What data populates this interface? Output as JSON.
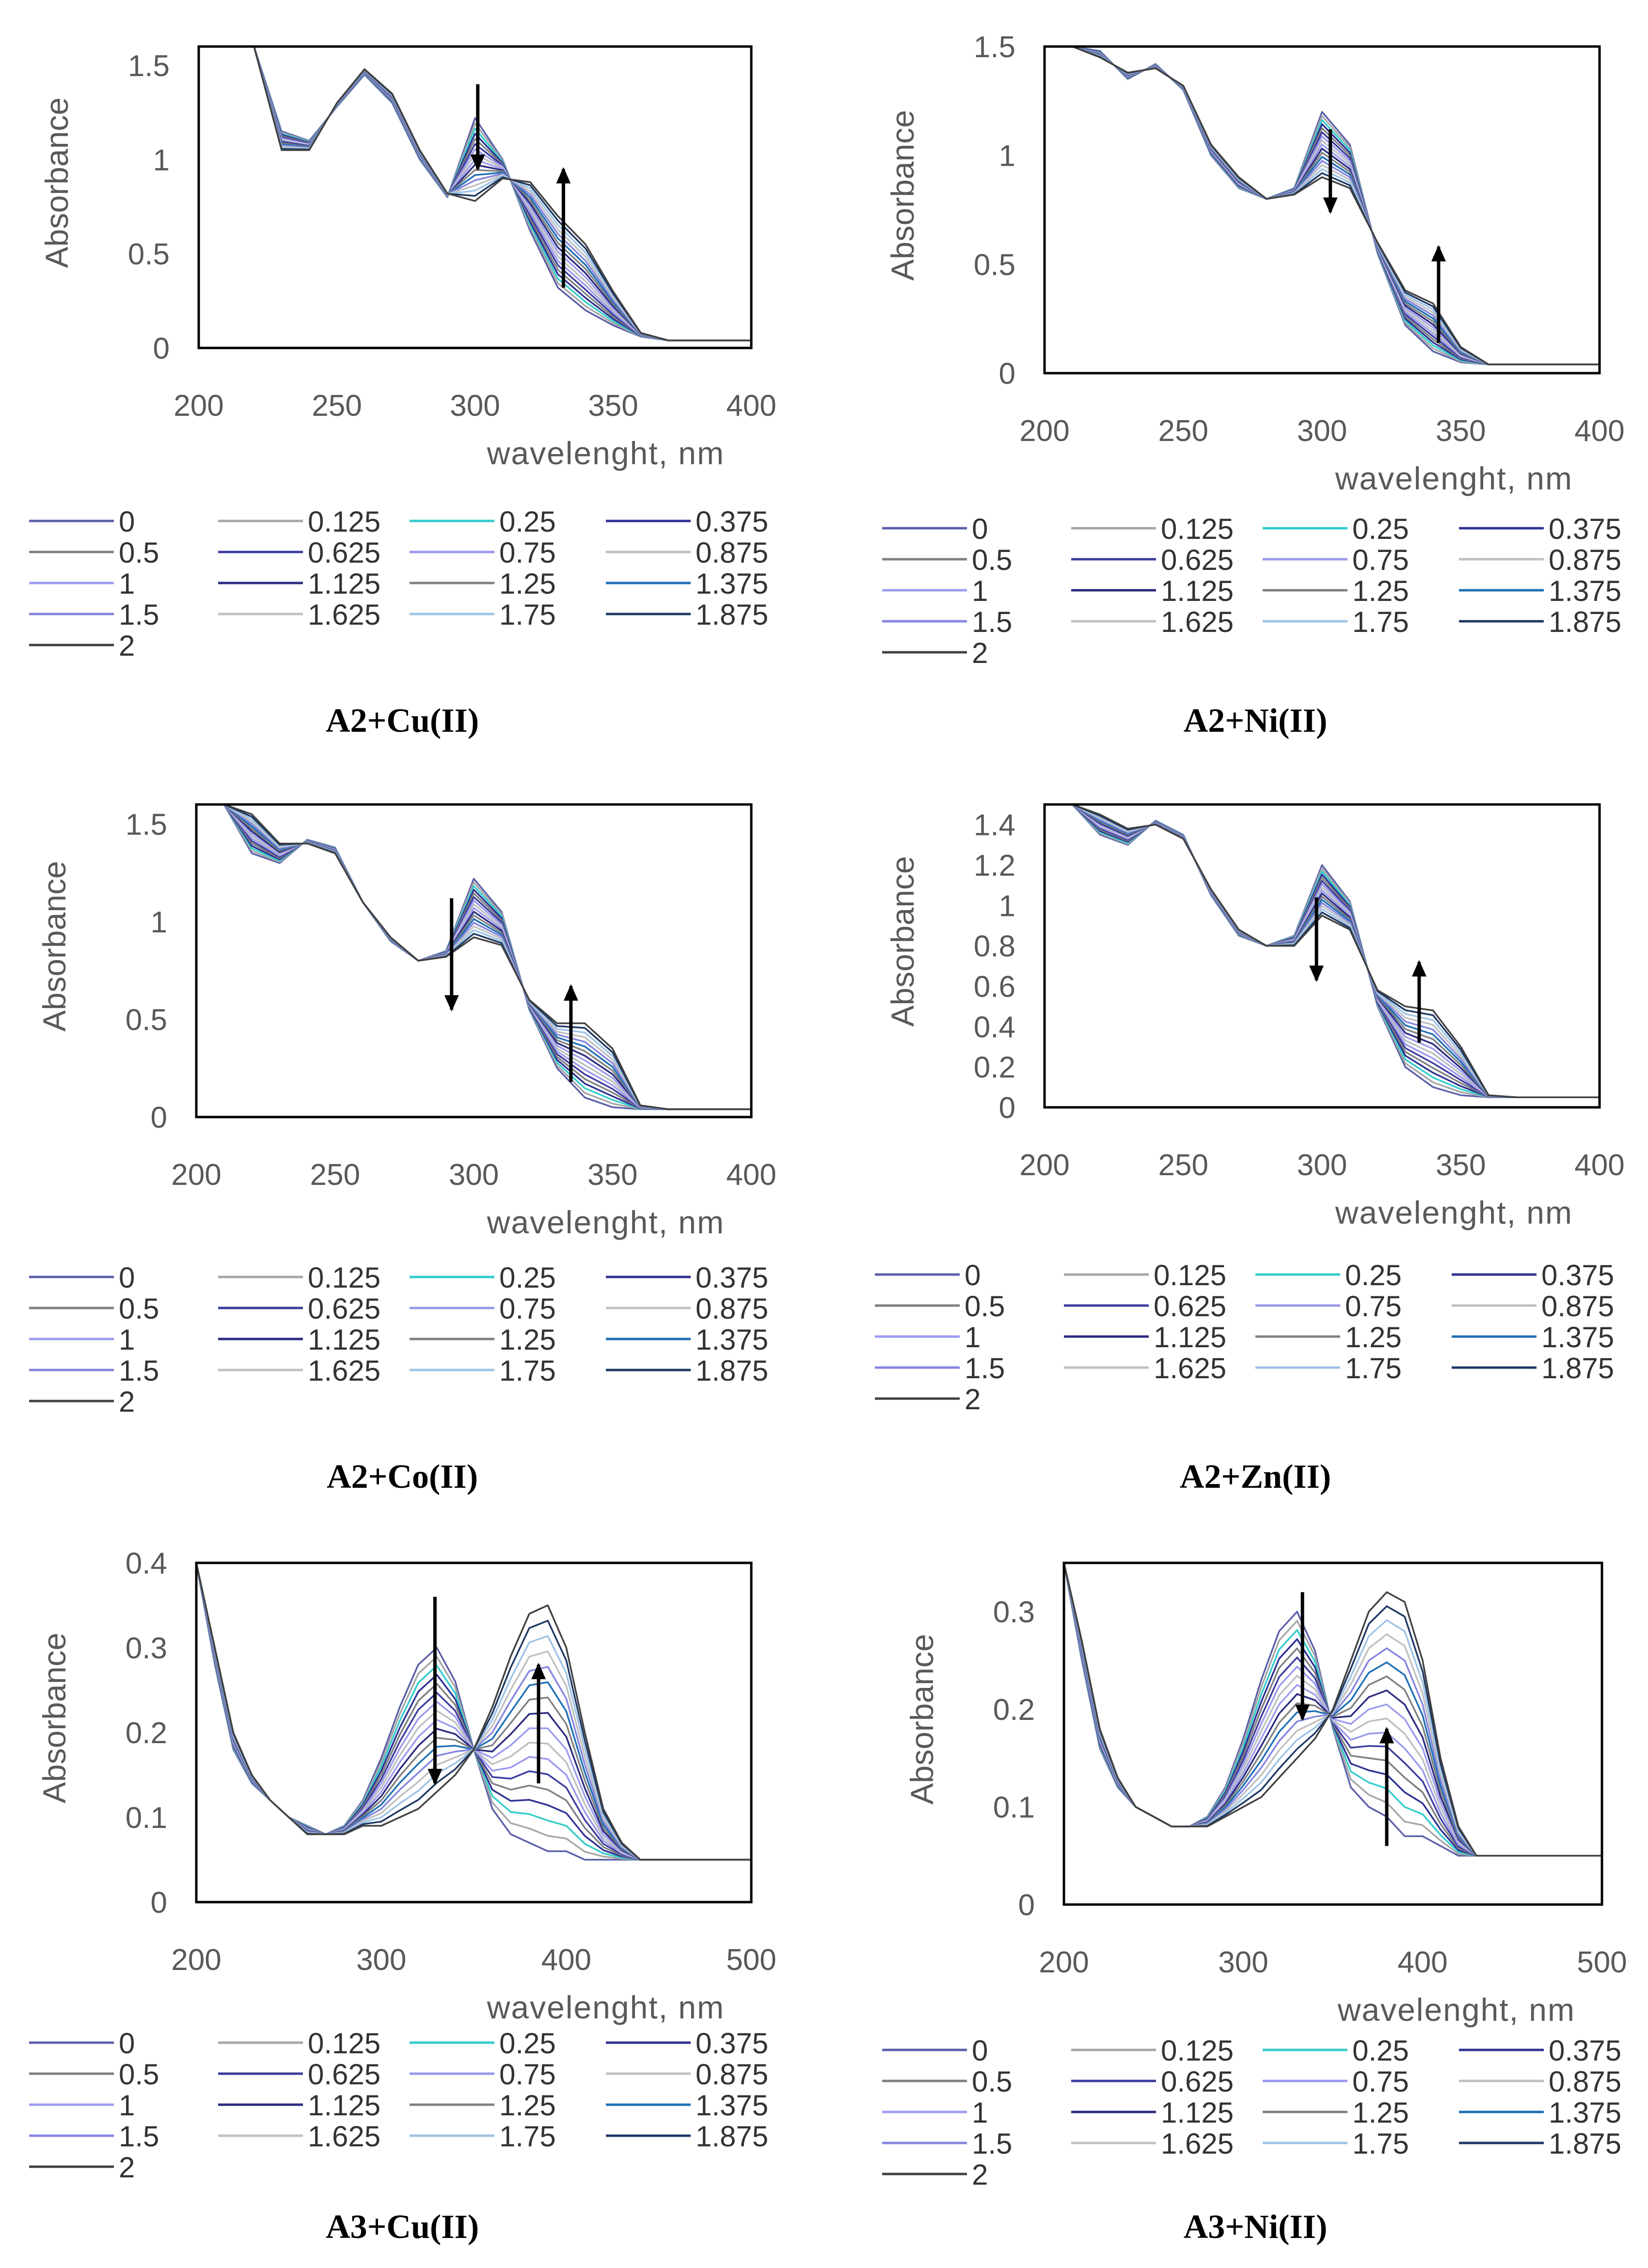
{
  "legend_entries": [
    "0",
    "0.125",
    "0.25",
    "0.375",
    "0.5",
    "0.625",
    "0.75",
    "0.875",
    "1",
    "1.125",
    "1.25",
    "1.375",
    "1.5",
    "1.625",
    "1.75",
    "1.875",
    "2"
  ],
  "series_colors": [
    "#5b5fa8",
    "#a6a6a6",
    "#33cccc",
    "#2e3192",
    "#7f7f7f",
    "#3c3c9e",
    "#9999ee",
    "#bfbfbf",
    "#9c9cf0",
    "#2b2b80",
    "#808080",
    "#1f6fb4",
    "#8585e0",
    "#c0c0c0",
    "#9dc3e6",
    "#1f3864",
    "#404040"
  ],
  "charts": [
    {
      "caption": "A2+Cu(II)",
      "ylabel": "Absorbance",
      "xlabel": "wavelenght, nm",
      "xticks": [
        "200",
        "250",
        "300",
        "350",
        "400"
      ],
      "yticks": [
        "0",
        "0.5",
        "1",
        "1.5"
      ],
      "xlim": [
        200,
        400
      ],
      "ylim": [
        0,
        1.6
      ],
      "arrows": [
        {
          "x": 301,
          "from": 1.4,
          "to": 0.95
        },
        {
          "x": 332,
          "from": 0.32,
          "to": 0.95
        }
      ]
    },
    {
      "caption": "A2+Ni(II)",
      "ylabel": "Absorbance",
      "xlabel": "wavelenght, nm",
      "xticks": [
        "200",
        "250",
        "300",
        "350",
        "400"
      ],
      "yticks": [
        "0",
        "0.5",
        "1",
        "1.5"
      ],
      "xlim": [
        200,
        400
      ],
      "ylim": [
        0,
        1.5
      ],
      "arrows": [
        {
          "x": 303,
          "from": 1.12,
          "to": 0.74
        },
        {
          "x": 342,
          "from": 0.14,
          "to": 0.58
        }
      ]
    },
    {
      "caption": "A2+Co(II)",
      "ylabel": "Absorbance",
      "xlabel": "wavelenght, nm",
      "xticks": [
        "200",
        "250",
        "300",
        "350",
        "400"
      ],
      "yticks": [
        "0",
        "0.5",
        "1",
        "1.5"
      ],
      "xlim": [
        200,
        400
      ],
      "ylim": [
        0,
        1.6
      ],
      "arrows": [
        {
          "x": 292,
          "from": 1.12,
          "to": 0.55
        },
        {
          "x": 335,
          "from": 0.18,
          "to": 0.67
        }
      ]
    },
    {
      "caption": "A2+Zn(II)",
      "ylabel": "Absorbance",
      "xlabel": "wavelenght, nm",
      "xticks": [
        "200",
        "250",
        "300",
        "350",
        "400"
      ],
      "yticks": [
        "0",
        "0.2",
        "0.4",
        "0.6",
        "0.8",
        "1",
        "1.2",
        "1.4"
      ],
      "xlim": [
        200,
        400
      ],
      "ylim": [
        0,
        1.5
      ],
      "arrows": [
        {
          "x": 298,
          "from": 1.04,
          "to": 0.63
        },
        {
          "x": 335,
          "from": 0.32,
          "to": 0.72
        }
      ]
    },
    {
      "caption": "A3+Cu(II)",
      "ylabel": "Absorbance",
      "xlabel": "wavelenght, nm",
      "xticks": [
        "200",
        "300",
        "400",
        "500"
      ],
      "yticks": [
        "0",
        "0.1",
        "0.2",
        "0.3",
        "0.4"
      ],
      "xlim": [
        200,
        500
      ],
      "ylim": [
        0,
        0.4
      ],
      "arrows": [
        {
          "x": 329,
          "from": 0.36,
          "to": 0.14
        },
        {
          "x": 385,
          "from": 0.14,
          "to": 0.28
        }
      ]
    },
    {
      "caption": "A3+Ni(II)",
      "ylabel": "Absorbance",
      "xlabel": "wavelenght, nm",
      "xticks": [
        "200",
        "300",
        "400",
        "500"
      ],
      "yticks": [
        "0",
        "0.1",
        "0.2",
        "0.3"
      ],
      "xlim": [
        200,
        500
      ],
      "ylim": [
        0,
        0.35
      ],
      "arrows": [
        {
          "x": 333,
          "from": 0.32,
          "to": 0.19
        },
        {
          "x": 380,
          "from": 0.06,
          "to": 0.18
        }
      ]
    }
  ],
  "chart_data": [
    {
      "type": "line",
      "title": "A2+Cu(II)",
      "xlabel": "wavelenght, nm",
      "ylabel": "Absorbance",
      "xlim": [
        200,
        400
      ],
      "ylim": [
        0,
        1.6
      ],
      "x": [
        200,
        210,
        220,
        230,
        240,
        250,
        260,
        270,
        280,
        290,
        300,
        310,
        320,
        330,
        340,
        350,
        360,
        370,
        380,
        390,
        400
      ],
      "start": [
        1.6,
        1.6,
        1.6,
        1.15,
        1.1,
        1.28,
        1.45,
        1.3,
        1.0,
        0.8,
        1.22,
        1.0,
        0.62,
        0.32,
        0.2,
        0.12,
        0.06,
        0.04,
        0.04,
        0.04,
        0.04
      ],
      "end": [
        1.6,
        1.6,
        1.6,
        1.05,
        1.05,
        1.3,
        1.48,
        1.35,
        1.05,
        0.82,
        0.78,
        0.9,
        0.88,
        0.7,
        0.55,
        0.3,
        0.08,
        0.04,
        0.04,
        0.04,
        0.04
      ]
    },
    {
      "type": "line",
      "title": "A2+Ni(II)",
      "xlabel": "wavelenght, nm",
      "ylabel": "Absorbance",
      "xlim": [
        200,
        400
      ],
      "ylim": [
        0,
        1.5
      ],
      "x": [
        200,
        210,
        220,
        230,
        240,
        250,
        260,
        270,
        280,
        290,
        300,
        310,
        320,
        330,
        340,
        350,
        360,
        370,
        380,
        390,
        400
      ],
      "start": [
        1.5,
        1.5,
        1.48,
        1.35,
        1.42,
        1.3,
        1.0,
        0.85,
        0.8,
        0.85,
        1.2,
        1.05,
        0.55,
        0.22,
        0.1,
        0.05,
        0.04,
        0.04,
        0.04,
        0.04,
        0.04
      ],
      "end": [
        1.5,
        1.5,
        1.45,
        1.38,
        1.4,
        1.32,
        1.05,
        0.9,
        0.8,
        0.82,
        0.9,
        0.85,
        0.6,
        0.38,
        0.32,
        0.12,
        0.04,
        0.04,
        0.04,
        0.04,
        0.04
      ]
    },
    {
      "type": "line",
      "title": "A2+Co(II)",
      "xlabel": "wavelenght, nm",
      "ylabel": "Absorbance",
      "xlim": [
        200,
        400
      ],
      "ylim": [
        0,
        1.6
      ],
      "x": [
        200,
        210,
        220,
        230,
        240,
        250,
        260,
        270,
        280,
        290,
        300,
        310,
        320,
        330,
        340,
        350,
        360,
        370,
        380,
        390,
        400
      ],
      "start": [
        1.6,
        1.6,
        1.35,
        1.3,
        1.42,
        1.38,
        1.1,
        0.9,
        0.8,
        0.85,
        1.22,
        1.05,
        0.55,
        0.25,
        0.1,
        0.05,
        0.04,
        0.04,
        0.04,
        0.04,
        0.04
      ],
      "end": [
        1.6,
        1.6,
        1.55,
        1.4,
        1.4,
        1.35,
        1.1,
        0.92,
        0.8,
        0.82,
        0.92,
        0.88,
        0.6,
        0.48,
        0.48,
        0.35,
        0.06,
        0.04,
        0.04,
        0.04,
        0.04
      ]
    },
    {
      "type": "line",
      "title": "A2+Zn(II)",
      "xlabel": "wavelenght, nm",
      "ylabel": "Absorbance",
      "xlim": [
        200,
        400
      ],
      "ylim": [
        0,
        1.5
      ],
      "x": [
        200,
        210,
        220,
        230,
        240,
        250,
        260,
        270,
        280,
        290,
        300,
        310,
        320,
        330,
        340,
        350,
        360,
        370,
        380,
        390,
        400
      ],
      "start": [
        1.5,
        1.5,
        1.35,
        1.3,
        1.42,
        1.35,
        1.05,
        0.85,
        0.8,
        0.85,
        1.2,
        1.02,
        0.5,
        0.2,
        0.1,
        0.06,
        0.05,
        0.05,
        0.05,
        0.05,
        0.05
      ],
      "end": [
        1.5,
        1.5,
        1.45,
        1.38,
        1.4,
        1.33,
        1.08,
        0.88,
        0.8,
        0.8,
        0.95,
        0.88,
        0.58,
        0.5,
        0.48,
        0.3,
        0.06,
        0.05,
        0.05,
        0.05,
        0.05
      ]
    },
    {
      "type": "line",
      "title": "A3+Cu(II)",
      "xlabel": "wavelenght, nm",
      "ylabel": "Absorbance",
      "xlim": [
        200,
        500
      ],
      "ylim": [
        0,
        0.4
      ],
      "x": [
        200,
        210,
        220,
        230,
        240,
        250,
        260,
        270,
        280,
        290,
        300,
        310,
        320,
        330,
        340,
        350,
        360,
        370,
        380,
        390,
        400,
        410,
        420,
        430,
        440,
        450,
        460,
        470,
        480,
        490,
        500
      ],
      "start": [
        0.4,
        0.28,
        0.18,
        0.14,
        0.12,
        0.1,
        0.09,
        0.08,
        0.09,
        0.12,
        0.17,
        0.23,
        0.28,
        0.3,
        0.26,
        0.18,
        0.11,
        0.08,
        0.07,
        0.06,
        0.06,
        0.05,
        0.05,
        0.05,
        0.05,
        0.05,
        0.05,
        0.05,
        0.05,
        0.05,
        0.05
      ],
      "end": [
        0.4,
        0.3,
        0.2,
        0.15,
        0.12,
        0.1,
        0.08,
        0.08,
        0.08,
        0.09,
        0.09,
        0.1,
        0.11,
        0.13,
        0.15,
        0.18,
        0.23,
        0.29,
        0.34,
        0.35,
        0.3,
        0.2,
        0.11,
        0.07,
        0.05,
        0.05,
        0.05,
        0.05,
        0.05,
        0.05,
        0.05
      ]
    },
    {
      "type": "line",
      "title": "A3+Ni(II)",
      "xlabel": "wavelenght, nm",
      "ylabel": "Absorbance",
      "xlim": [
        200,
        500
      ],
      "ylim": [
        0,
        0.35
      ],
      "x": [
        200,
        210,
        220,
        230,
        240,
        250,
        260,
        270,
        280,
        290,
        300,
        310,
        320,
        330,
        340,
        350,
        360,
        370,
        380,
        390,
        400,
        410,
        420,
        430,
        440,
        450,
        460,
        470,
        480,
        490,
        500
      ],
      "start": [
        0.35,
        0.25,
        0.16,
        0.12,
        0.1,
        0.09,
        0.08,
        0.08,
        0.09,
        0.12,
        0.17,
        0.23,
        0.28,
        0.3,
        0.26,
        0.18,
        0.12,
        0.1,
        0.09,
        0.07,
        0.07,
        0.06,
        0.05,
        0.05,
        0.05,
        0.05,
        0.05,
        0.05,
        0.05,
        0.05,
        0.05
      ],
      "end": [
        0.35,
        0.27,
        0.18,
        0.13,
        0.1,
        0.09,
        0.08,
        0.08,
        0.08,
        0.09,
        0.1,
        0.11,
        0.13,
        0.15,
        0.17,
        0.2,
        0.25,
        0.3,
        0.32,
        0.31,
        0.25,
        0.15,
        0.08,
        0.05,
        0.05,
        0.05,
        0.05,
        0.05,
        0.05,
        0.05,
        0.05
      ]
    }
  ]
}
